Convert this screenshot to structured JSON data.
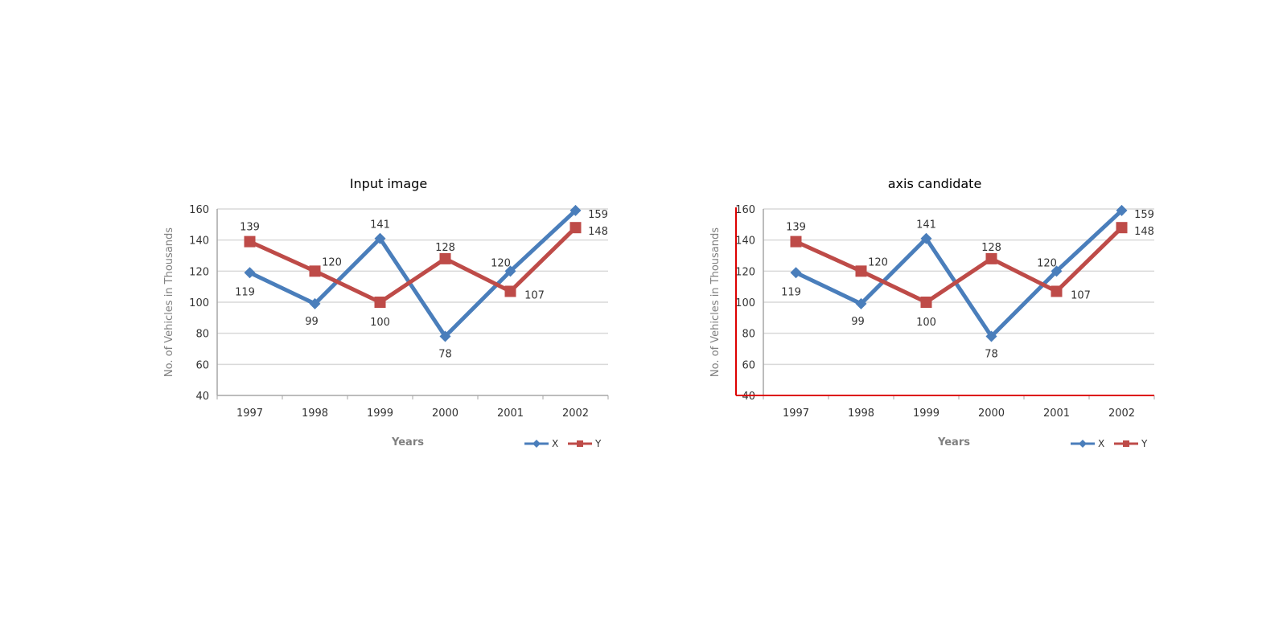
{
  "panels": [
    {
      "title": "Input image",
      "show_candidate": false
    },
    {
      "title": "axis candidate",
      "show_candidate": true
    }
  ],
  "colors": {
    "X": "#4a7ebb",
    "Y": "#be4b48",
    "candidate": "#dd0000",
    "grid": "#d9d9d9",
    "axis": "#a6a6a6"
  },
  "chart_data": {
    "type": "line",
    "categories": [
      "1997",
      "1998",
      "1999",
      "2000",
      "2001",
      "2002"
    ],
    "series": [
      {
        "name": "X",
        "values": [
          119,
          99,
          141,
          78,
          120,
          159
        ],
        "marker": "diamond"
      },
      {
        "name": "Y",
        "values": [
          139,
          120,
          100,
          128,
          107,
          148
        ],
        "marker": "square"
      }
    ],
    "xlabel": "Years",
    "ylabel": "No. of Vehicles in Thousands",
    "ylim": [
      40,
      160
    ],
    "yticks": [
      40,
      60,
      80,
      100,
      120,
      140,
      160
    ],
    "grid": true,
    "legend": "bottom-right"
  }
}
